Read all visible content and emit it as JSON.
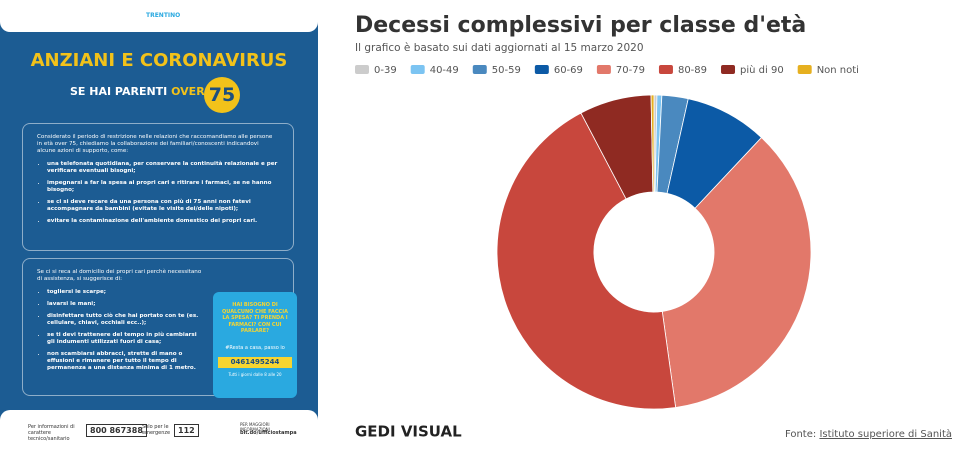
{
  "poster": {
    "logo": "TRENTINO",
    "title": "ANZIANI E CORONAVIRUS",
    "subtitle": "SE HAI PARENTI",
    "over": "OVER",
    "age": "75",
    "box1": {
      "intro": "Considerato il periodo di restrizione nelle relazioni che raccomandiamo alle persone in età over 75, chiediamo la collaborazione dei familiari/conoscenti indicandovi alcune azioni di supporto, come:",
      "items": [
        "una telefonata quotidiana, per conservare la continuità relazionale e per verificare eventuali bisogni;",
        "impegnarsi a far la spesa ai propri cari e ritirare i farmaci, se ne hanno bisogno;",
        "se ci si deve recare da una persona con più di 75 anni non fatevi accompagnare da bambini (evitate le visite dei/delle nipoti);",
        "evitare la contaminazione dell'ambiente domestico dei propri cari."
      ]
    },
    "box2": {
      "intro": "Se ci si reca al domicilio dei propri cari perchè necessitano di assistenza, si suggerisce di:",
      "items": [
        "togliersi le scarpe;",
        "lavarsi le mani;",
        "disinfettare tutto ciò che hai portato con te (es. cellulare, chiavi, occhiali ecc..);",
        "se ti devi trattenere del tempo in più cambiarsi gli indumenti utilizzati fuori di casa;",
        "non scambiarsi abbracci, strette di mano o effusioni e rimanere per tutto il tempo di permanenza a una distanza minima di 1 metro."
      ]
    },
    "help": {
      "question": "HAI BISOGNO DI QUALCUNO CHE FACCIA LA SPESA? TI PRENDA I FARMACI? CON CUI PARLARE?",
      "hashtag": "#Resta a casa, passo io",
      "phone": "0461495244",
      "hours": "Tutti i giorni dalle 8 alle 20"
    },
    "footer": {
      "info_label": "Per informazioni di carattere tecnico/sanitario",
      "info_phone": "800 867388",
      "emergency_label": "Solo per le emergenze",
      "emergency_phone": "112",
      "more_label": "PER MAGGIORI INFORMAZIONI",
      "more_link": "bit.do/ufficiostampa"
    }
  },
  "chart_data": {
    "type": "donut",
    "title": "Decessi complessivi per classe d'età",
    "subtitle": "Il grafico è basato sui dati aggiornati al 15 marzo 2020",
    "categories": [
      "0-39",
      "40-49",
      "50-59",
      "60-69",
      "70-79",
      "80-89",
      "più di 90",
      "Non noti"
    ],
    "values": [
      0.3,
      0.5,
      2.7,
      8.5,
      35.8,
      44.5,
      7.4,
      0.3
    ],
    "colors": [
      "#cccccc",
      "#7cc4f2",
      "#4a89bf",
      "#0c5aa6",
      "#e2786a",
      "#c8473d",
      "#8f2a22",
      "#e6b020"
    ],
    "brand": "GEDI VISUAL",
    "source_label": "Fonte:",
    "source": "Istituto superiore di Sanità"
  }
}
